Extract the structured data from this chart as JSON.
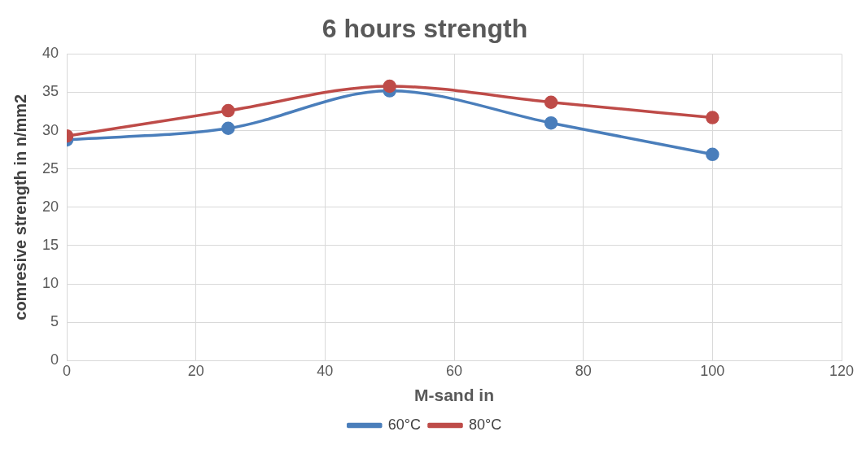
{
  "chart_data": {
    "type": "line",
    "title": "6 hours strength",
    "xlabel": "M-sand in",
    "ylabel": "comresive strength in n/mm2",
    "x": [
      0,
      25,
      50,
      75,
      100
    ],
    "series": [
      {
        "name": "60°C",
        "color": "#4a7ebb",
        "values": [
          28.8,
          30.3,
          35.2,
          31.0,
          26.9
        ]
      },
      {
        "name": "80°C",
        "color": "#be4b48",
        "values": [
          29.3,
          32.6,
          35.8,
          33.7,
          31.7
        ]
      }
    ],
    "xlim": [
      0,
      120
    ],
    "xticks": [
      0,
      20,
      40,
      60,
      80,
      100,
      120
    ],
    "ylim": [
      0,
      40
    ],
    "yticks": [
      0,
      5,
      10,
      15,
      20,
      25,
      30,
      35,
      40
    ],
    "grid": true,
    "legend": "bottom",
    "marker": "circle",
    "line_style": "solid"
  }
}
